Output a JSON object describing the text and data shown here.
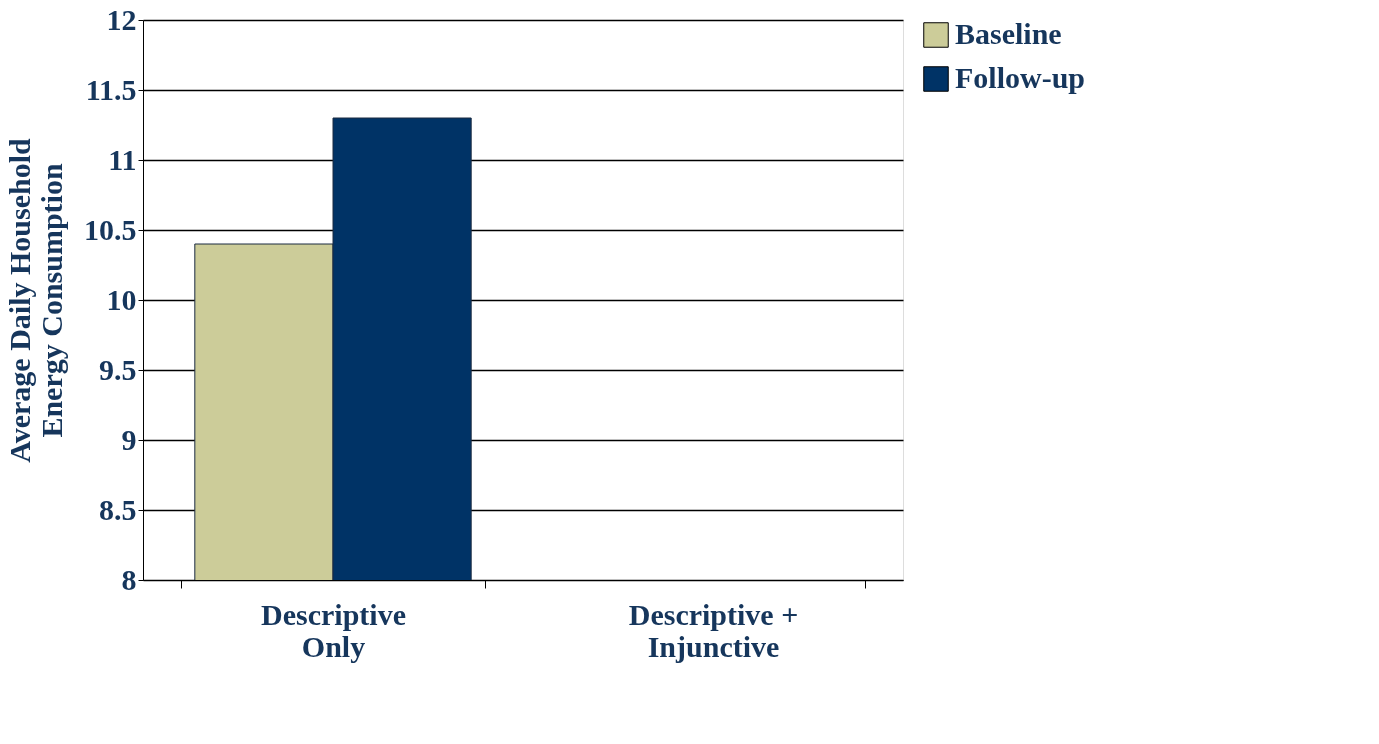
{
  "chart_data": {
    "type": "bar",
    "ylabel": "Average Daily Household Energy Consumption",
    "categories": [
      "Descriptive Only",
      "Descriptive + Injunctive"
    ],
    "series": [
      {
        "name": "Baseline",
        "color": "#cccc99",
        "values": [
          10.4,
          null
        ]
      },
      {
        "name": "Follow-up",
        "color": "#003366",
        "values": [
          11.3,
          null
        ]
      }
    ],
    "ylim": [
      8,
      12
    ],
    "yticks": [
      8,
      8.5,
      9,
      9.5,
      10,
      10.5,
      11,
      11.5,
      12
    ],
    "grid": "y",
    "legend": "right"
  }
}
